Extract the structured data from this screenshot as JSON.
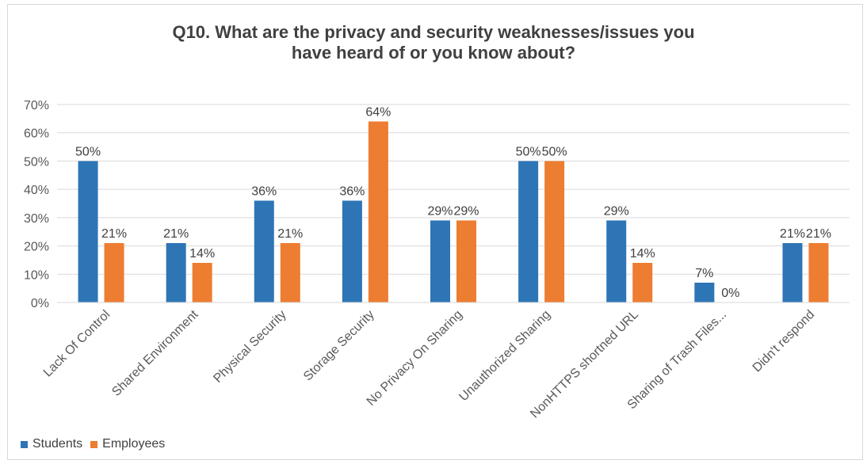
{
  "chart_data": {
    "type": "bar",
    "title": "Q10. What are the privacy and security weaknesses/issues you\nhave heard of or you know about?",
    "categories": [
      "Lack Of Control",
      "Shared Environment",
      "Physical Security",
      "Storage Security",
      "No Privacy On Sharing",
      "Unauthorized Sharing",
      "NonHTTPS shortned URL",
      "Sharing of Trash Files...",
      "Didn't respond"
    ],
    "series": [
      {
        "name": "Students",
        "values": [
          50,
          21,
          36,
          36,
          29,
          50,
          29,
          7,
          21
        ],
        "labels": [
          "50%",
          "21%",
          "36%",
          "36%",
          "29%",
          "50%",
          "29%",
          "7%",
          "21%"
        ],
        "color": "#2e75b6"
      },
      {
        "name": "Employees",
        "values": [
          21,
          14,
          21,
          64,
          29,
          50,
          14,
          0,
          21
        ],
        "labels": [
          "21%",
          "14%",
          "21%",
          "64%",
          "29%",
          "50%",
          "14%",
          "0%",
          "21%"
        ],
        "color": "#ed7d31"
      }
    ],
    "y_ticks": [
      "0%",
      "10%",
      "20%",
      "30%",
      "40%",
      "50%",
      "60%",
      "70%"
    ],
    "ylim": [
      0,
      70
    ],
    "grid": true,
    "legend_position": "bottom-left",
    "xlabel": "",
    "ylabel": ""
  }
}
